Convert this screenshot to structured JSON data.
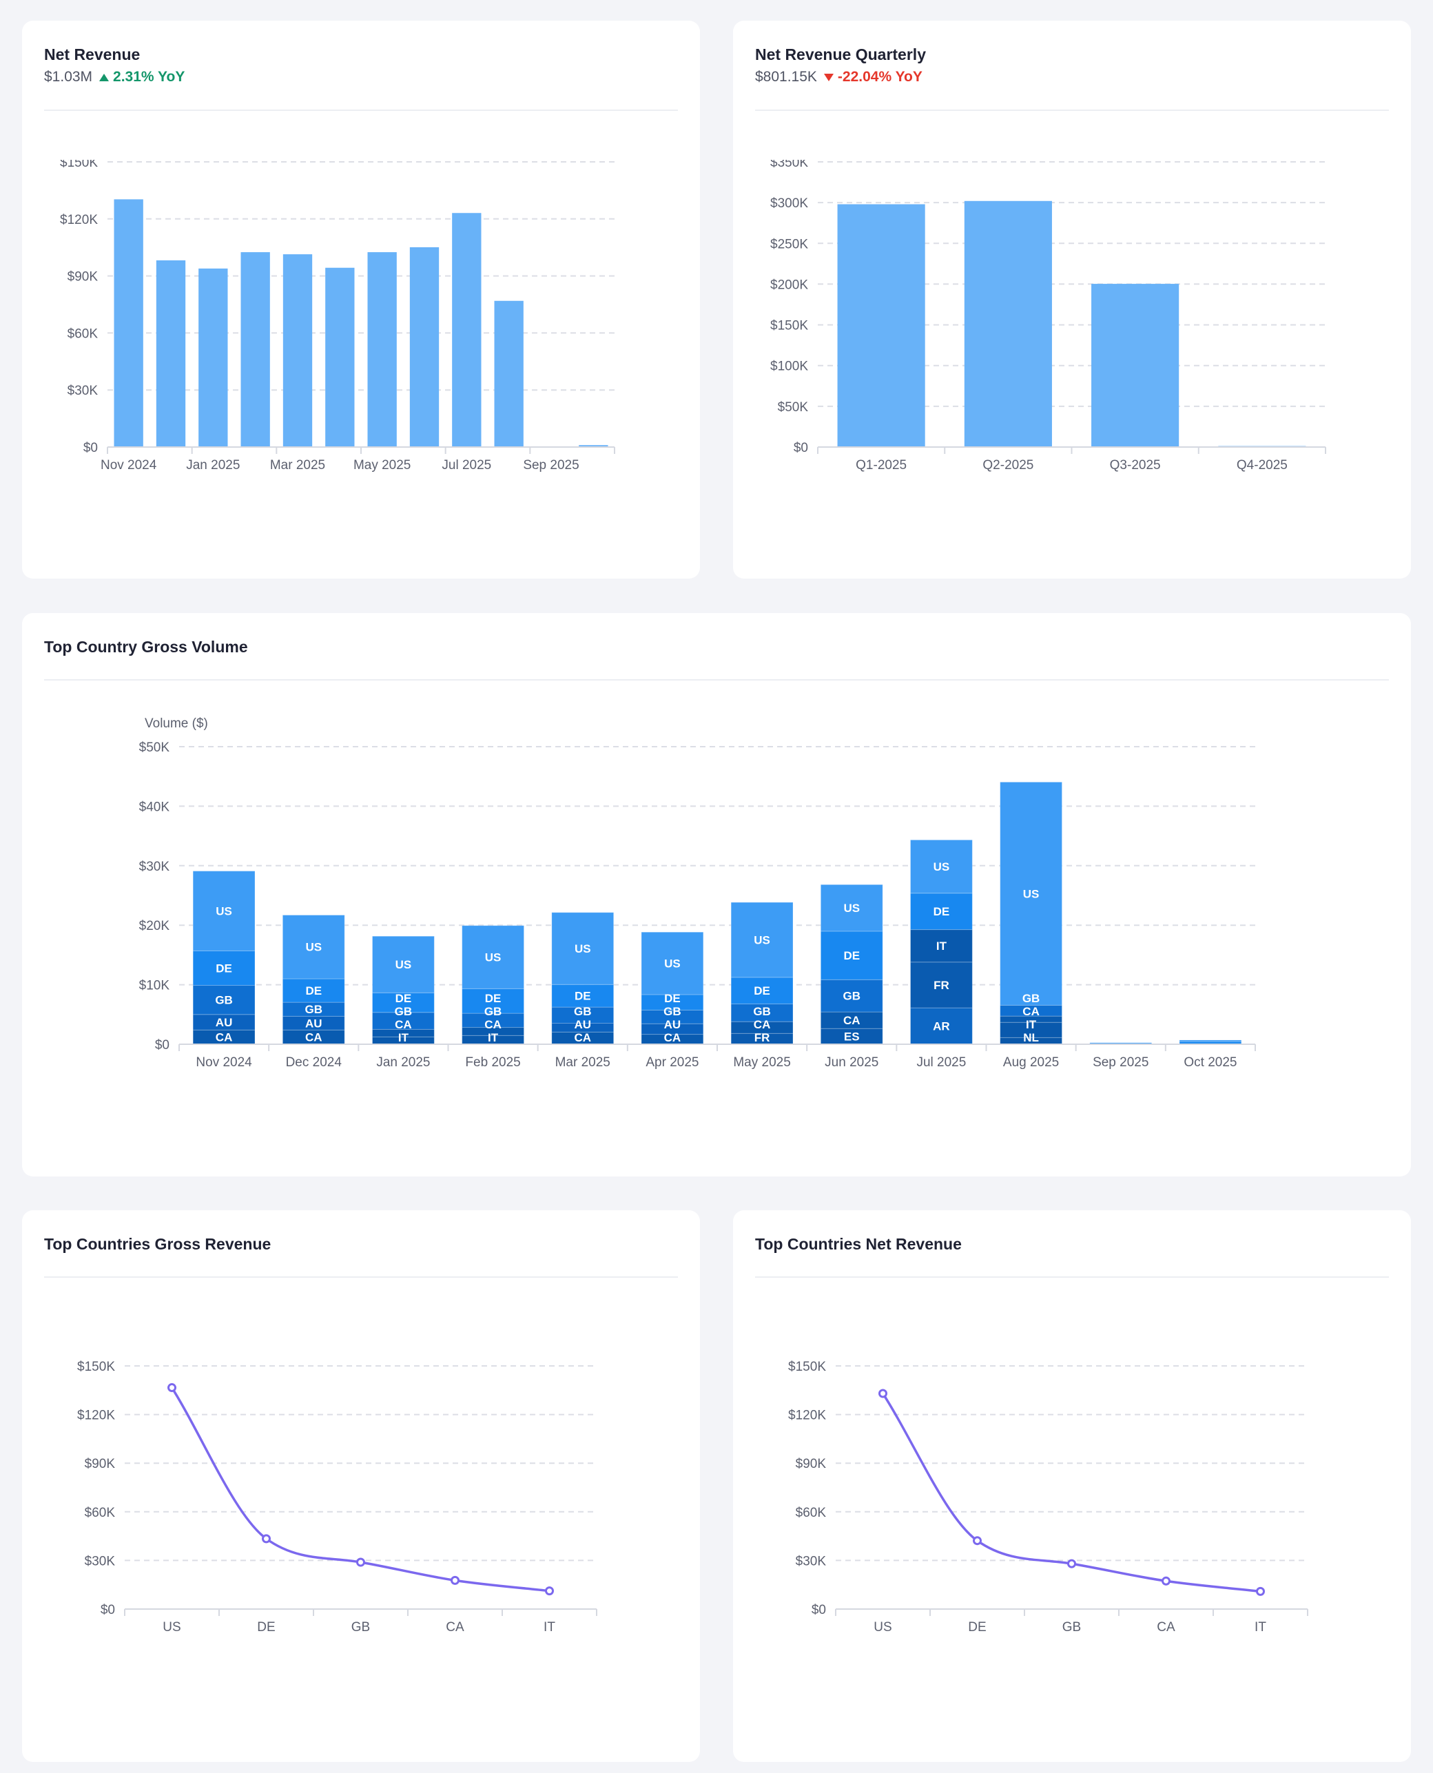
{
  "cards": {
    "net_revenue": {
      "title": "Net Revenue",
      "value": "$1.03M",
      "change": "2.31% YoY",
      "direction": "up"
    },
    "net_revenue_quarterly": {
      "title": "Net Revenue Quarterly",
      "value": "$801.15K",
      "change": "-22.04% YoY",
      "direction": "down"
    },
    "top_country_gross_volume": {
      "title": "Top Country Gross Volume"
    },
    "top_countries_gross_revenue": {
      "title": "Top Countries Gross Revenue"
    },
    "top_countries_net_revenue": {
      "title": "Top Countries Net Revenue"
    }
  },
  "colors": {
    "bar": "#68b2f8",
    "line": "#7b68ee",
    "positive": "#14966a",
    "negative": "#e5372b",
    "countries": {
      "US": "#3d9cf5",
      "DE": "#1888f0",
      "GB": "#0f6fd1",
      "AU": "#0b62bf",
      "CA": "#095bb0",
      "IT": "#0959ad",
      "FR": "#0a5bb0",
      "ES": "#0a5bb0",
      "AR": "#0d67c4",
      "NL": "#0a58aa"
    }
  },
  "chart_data": [
    {
      "id": "net_revenue",
      "type": "bar",
      "categories": [
        "Nov 2024",
        "Dec 2024",
        "Jan 2025",
        "Feb 2025",
        "Mar 2025",
        "Apr 2025",
        "May 2025",
        "Jun 2025",
        "Jul 2025",
        "Aug 2025",
        "Sep 2025",
        "Oct 2025"
      ],
      "x_tick_labels": [
        "Nov 2024",
        "",
        "Jan 2025",
        "",
        "Mar 2025",
        "",
        "May 2025",
        "",
        "Jul 2025",
        "",
        "Sep 2025",
        ""
      ],
      "values": [
        130300,
        98200,
        93900,
        102500,
        101400,
        94300,
        102500,
        105100,
        123100,
        76900,
        300,
        1000
      ],
      "ylim": [
        0,
        150000
      ],
      "yticks": [
        0,
        30000,
        60000,
        90000,
        120000,
        150000
      ],
      "ytick_labels": [
        "$0",
        "$30K",
        "$60K",
        "$90K",
        "$120K",
        "$150K"
      ],
      "grid": true
    },
    {
      "id": "net_revenue_quarterly",
      "type": "bar",
      "categories": [
        "Q1-2025",
        "Q2-2025",
        "Q3-2025",
        "Q4-2025"
      ],
      "x_tick_labels": [
        "Q1-2025",
        "Q2-2025",
        "Q3-2025",
        "Q4-2025"
      ],
      "values": [
        298000,
        302000,
        200300,
        1200
      ],
      "ylim": [
        0,
        350000
      ],
      "yticks": [
        0,
        50000,
        100000,
        150000,
        200000,
        250000,
        300000,
        350000
      ],
      "ytick_labels": [
        "$0",
        "$50K",
        "$100K",
        "$150K",
        "$200K",
        "$250K",
        "$300K",
        "$350K"
      ],
      "grid": true
    },
    {
      "id": "top_country_gross_volume",
      "type": "bar",
      "stacked": true,
      "ylabel": "Volume ($)",
      "categories": [
        "Nov 2024",
        "Dec 2024",
        "Jan 2025",
        "Feb 2025",
        "Mar 2025",
        "Apr 2025",
        "May 2025",
        "Jun 2025",
        "Jul 2025",
        "Aug 2025",
        "Sep 2025",
        "Oct 2025"
      ],
      "x_tick_labels": [
        "Nov 2024",
        "Dec 2024",
        "Jan 2025",
        "Feb 2025",
        "Mar 2025",
        "Apr 2025",
        "May 2025",
        "Jun 2025",
        "Jul 2025",
        "Aug 2025",
        "Sep 2025",
        "Oct 2025"
      ],
      "stacks": [
        [
          {
            "country": "CA",
            "value": 2400
          },
          {
            "country": "AU",
            "value": 2600
          },
          {
            "country": "GB",
            "value": 4900
          },
          {
            "country": "DE",
            "value": 5800
          },
          {
            "country": "US",
            "value": 13400
          }
        ],
        [
          {
            "country": "CA",
            "value": 2400
          },
          {
            "country": "AU",
            "value": 2300
          },
          {
            "country": "GB",
            "value": 2350
          },
          {
            "country": "DE",
            "value": 3950
          },
          {
            "country": "US",
            "value": 10700
          }
        ],
        [
          {
            "country": "IT",
            "value": 1240
          },
          {
            "country": "CA",
            "value": 1260
          },
          {
            "country": "GB",
            "value": 2850
          },
          {
            "country": "DE",
            "value": 3300
          },
          {
            "country": "US",
            "value": 9500
          }
        ],
        [
          {
            "country": "IT",
            "value": 1470
          },
          {
            "country": "CA",
            "value": 1360
          },
          {
            "country": "GB",
            "value": 2370
          },
          {
            "country": "DE",
            "value": 4140
          },
          {
            "country": "US",
            "value": 10600
          }
        ],
        [
          {
            "country": "CA",
            "value": 2050
          },
          {
            "country": "AU",
            "value": 1480
          },
          {
            "country": "GB",
            "value": 2710
          },
          {
            "country": "DE",
            "value": 3800
          },
          {
            "country": "US",
            "value": 12100
          }
        ],
        [
          {
            "country": "CA",
            "value": 1670
          },
          {
            "country": "AU",
            "value": 1780
          },
          {
            "country": "GB",
            "value": 2290
          },
          {
            "country": "DE",
            "value": 2600
          },
          {
            "country": "US",
            "value": 10500
          }
        ],
        [
          {
            "country": "FR",
            "value": 1820
          },
          {
            "country": "CA",
            "value": 1980
          },
          {
            "country": "GB",
            "value": 2980
          },
          {
            "country": "DE",
            "value": 4460
          },
          {
            "country": "US",
            "value": 12600
          }
        ],
        [
          {
            "country": "ES",
            "value": 2640
          },
          {
            "country": "CA",
            "value": 2790
          },
          {
            "country": "GB",
            "value": 5420
          },
          {
            "country": "DE",
            "value": 8140
          },
          {
            "country": "US",
            "value": 7830
          }
        ],
        [
          {
            "country": "AR",
            "value": 6120
          },
          {
            "country": "FR",
            "value": 7680
          },
          {
            "country": "IT",
            "value": 5460
          },
          {
            "country": "DE",
            "value": 6120
          },
          {
            "country": "US",
            "value": 8950
          }
        ],
        [
          {
            "country": "NL",
            "value": 1120
          },
          {
            "country": "IT",
            "value": 2560
          },
          {
            "country": "CA",
            "value": 1050
          },
          {
            "country": "GB",
            "value": 1820
          },
          {
            "country": "US",
            "value": 37500
          }
        ],
        [
          {
            "country": "US",
            "value": 250
          }
        ],
        [
          {
            "country": "DE",
            "value": 450
          },
          {
            "country": "US",
            "value": 250
          }
        ]
      ],
      "ylim": [
        0,
        50000
      ],
      "yticks": [
        0,
        10000,
        20000,
        30000,
        40000,
        50000
      ],
      "ytick_labels": [
        "$0",
        "$10K",
        "$20K",
        "$30K",
        "$40K",
        "$50K"
      ],
      "grid": true
    },
    {
      "id": "top_countries_gross_revenue",
      "type": "line",
      "categories": [
        "US",
        "DE",
        "GB",
        "CA",
        "IT"
      ],
      "x_tick_labels": [
        "US",
        "DE",
        "GB",
        "CA",
        "IT"
      ],
      "values": [
        136600,
        43400,
        28900,
        17700,
        11200
      ],
      "ylim": [
        0,
        150000
      ],
      "yticks": [
        0,
        30000,
        60000,
        90000,
        120000,
        150000
      ],
      "ytick_labels": [
        "$0",
        "$30K",
        "$60K",
        "$90K",
        "$120K",
        "$150K"
      ],
      "grid": true
    },
    {
      "id": "top_countries_net_revenue",
      "type": "line",
      "categories": [
        "US",
        "DE",
        "GB",
        "CA",
        "IT"
      ],
      "x_tick_labels": [
        "US",
        "DE",
        "GB",
        "CA",
        "IT"
      ],
      "values": [
        133000,
        42200,
        28000,
        17300,
        10900
      ],
      "ylim": [
        0,
        150000
      ],
      "yticks": [
        0,
        30000,
        60000,
        90000,
        120000,
        150000
      ],
      "ytick_labels": [
        "$0",
        "$30K",
        "$60K",
        "$90K",
        "$120K",
        "$150K"
      ],
      "grid": true
    }
  ]
}
